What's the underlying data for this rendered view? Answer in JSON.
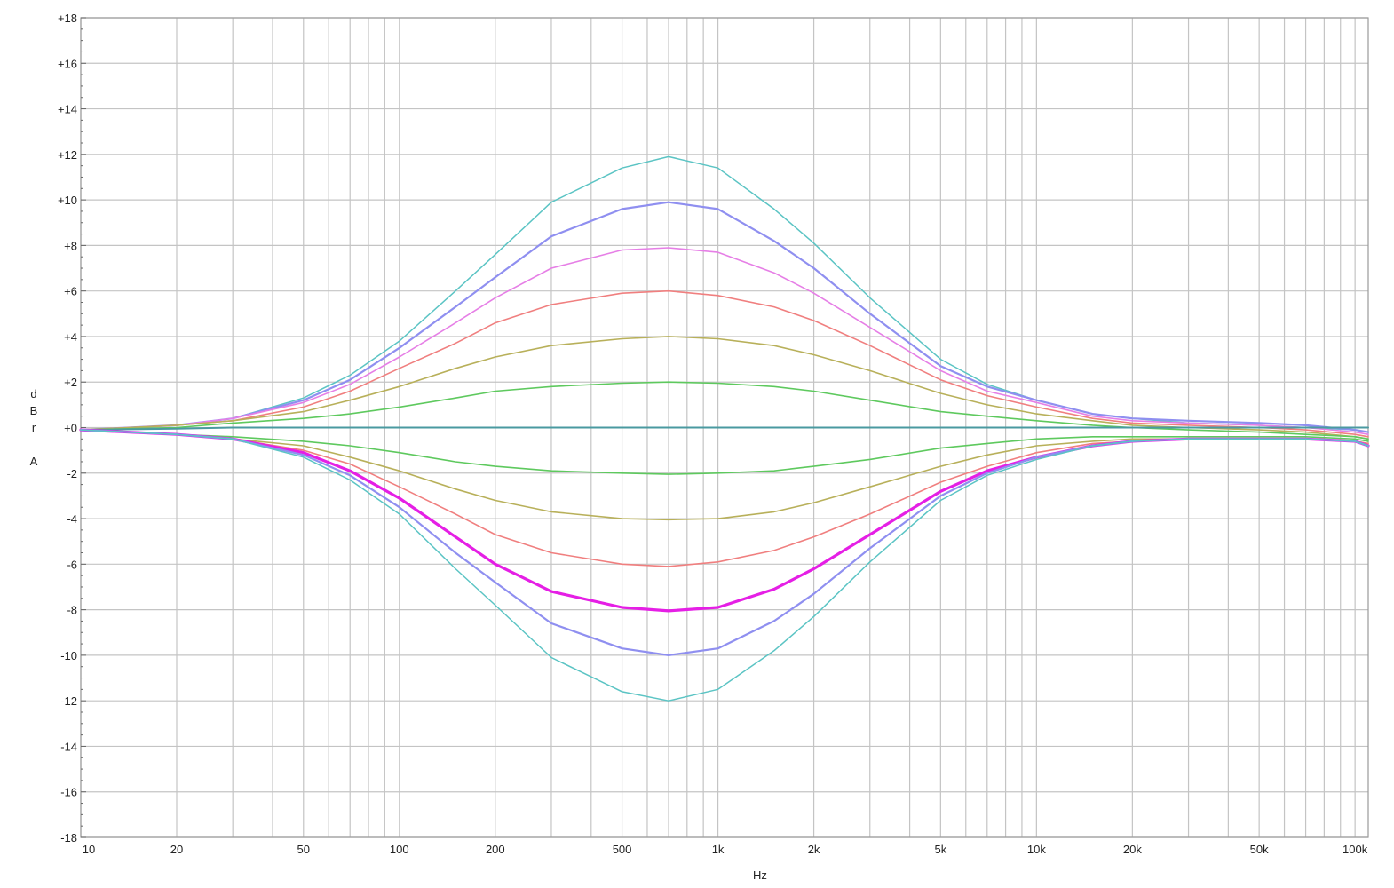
{
  "chart_data": {
    "type": "line",
    "x_scale": "log",
    "xlim": [
      10,
      110000
    ],
    "ylim": [
      -18,
      18
    ],
    "grid": true,
    "xlabel": "Hz",
    "ylabel_lines": [
      "d",
      "B",
      "r",
      "",
      "A"
    ],
    "x_ticks": [
      {
        "value": 10,
        "label": "10"
      },
      {
        "value": 20,
        "label": "20"
      },
      {
        "value": 50,
        "label": "50"
      },
      {
        "value": 100,
        "label": "100"
      },
      {
        "value": 200,
        "label": "200"
      },
      {
        "value": 500,
        "label": "500"
      },
      {
        "value": 1000,
        "label": "1k"
      },
      {
        "value": 2000,
        "label": "2k"
      },
      {
        "value": 5000,
        "label": "5k"
      },
      {
        "value": 10000,
        "label": "10k"
      },
      {
        "value": 20000,
        "label": "20k"
      },
      {
        "value": 50000,
        "label": "50k"
      },
      {
        "value": 100000,
        "label": "100k"
      }
    ],
    "y_ticks": [
      {
        "value": 18,
        "label": "+18"
      },
      {
        "value": 16,
        "label": "+16"
      },
      {
        "value": 14,
        "label": "+14"
      },
      {
        "value": 12,
        "label": "+12"
      },
      {
        "value": 10,
        "label": "+10"
      },
      {
        "value": 8,
        "label": "+8"
      },
      {
        "value": 6,
        "label": "+6"
      },
      {
        "value": 4,
        "label": "+4"
      },
      {
        "value": 2,
        "label": "+2"
      },
      {
        "value": 0,
        "label": "+0"
      },
      {
        "value": -2,
        "label": "-2"
      },
      {
        "value": -4,
        "label": "-4"
      },
      {
        "value": -6,
        "label": "-6"
      },
      {
        "value": -8,
        "label": "-8"
      },
      {
        "value": -10,
        "label": "-10"
      },
      {
        "value": -12,
        "label": "-12"
      },
      {
        "value": -14,
        "label": "-14"
      },
      {
        "value": -16,
        "label": "-16"
      },
      {
        "value": -18,
        "label": "-18"
      }
    ],
    "x": [
      10,
      20,
      30,
      50,
      70,
      100,
      150,
      200,
      300,
      500,
      700,
      1000,
      1500,
      2000,
      3000,
      5000,
      7000,
      10000,
      15000,
      20000,
      30000,
      50000,
      70000,
      100000,
      110000
    ],
    "series": [
      {
        "color": "#5bc4c4",
        "width": 1.5,
        "values": [
          -0.1,
          0.1,
          0.4,
          1.3,
          2.3,
          3.8,
          6.0,
          7.6,
          9.9,
          11.4,
          11.9,
          11.4,
          9.6,
          8.1,
          5.7,
          3.0,
          1.9,
          1.2,
          0.6,
          0.4,
          0.2,
          0.1,
          0.0,
          -0.1,
          -0.2
        ]
      },
      {
        "color": "#8f8ff0",
        "width": 2.2,
        "values": [
          -0.1,
          0.1,
          0.4,
          1.2,
          2.1,
          3.5,
          5.3,
          6.6,
          8.4,
          9.6,
          9.9,
          9.6,
          8.2,
          7.0,
          5.0,
          2.7,
          1.8,
          1.2,
          0.6,
          0.4,
          0.3,
          0.2,
          0.1,
          -0.1,
          -0.2
        ]
      },
      {
        "color": "#e67fe6",
        "width": 1.6,
        "values": [
          -0.1,
          0.1,
          0.4,
          1.1,
          1.9,
          3.1,
          4.6,
          5.7,
          7.0,
          7.8,
          7.9,
          7.7,
          6.8,
          5.9,
          4.4,
          2.5,
          1.6,
          1.1,
          0.5,
          0.3,
          0.2,
          0.1,
          0.0,
          -0.2,
          -0.3
        ]
      },
      {
        "color": "#f07f7f",
        "width": 1.6,
        "values": [
          -0.1,
          0.1,
          0.3,
          0.9,
          1.6,
          2.6,
          3.7,
          4.6,
          5.4,
          5.9,
          6.0,
          5.8,
          5.3,
          4.7,
          3.6,
          2.1,
          1.4,
          0.9,
          0.4,
          0.2,
          0.1,
          0.0,
          -0.1,
          -0.3,
          -0.4
        ]
      },
      {
        "color": "#b8b05a",
        "width": 1.6,
        "values": [
          -0.1,
          0.1,
          0.3,
          0.7,
          1.2,
          1.8,
          2.6,
          3.1,
          3.6,
          3.9,
          4.0,
          3.9,
          3.6,
          3.2,
          2.5,
          1.5,
          1.0,
          0.6,
          0.3,
          0.1,
          0.0,
          -0.1,
          -0.2,
          -0.4,
          -0.5
        ]
      },
      {
        "color": "#5ec95e",
        "width": 1.6,
        "values": [
          -0.1,
          0.0,
          0.2,
          0.4,
          0.6,
          0.9,
          1.3,
          1.6,
          1.8,
          1.95,
          2.0,
          1.95,
          1.8,
          1.6,
          1.2,
          0.7,
          0.5,
          0.3,
          0.1,
          0.0,
          -0.1,
          -0.2,
          -0.3,
          -0.4,
          -0.5
        ]
      },
      {
        "color": "#4a9aa0",
        "width": 2.0,
        "values": [
          -0.1,
          -0.05,
          0.0,
          0.0,
          0.0,
          0.0,
          0.0,
          0.0,
          0.0,
          0.0,
          0.0,
          0.0,
          0.0,
          0.0,
          0.0,
          0.0,
          0.0,
          0.0,
          0.0,
          0.0,
          0.0,
          0.0,
          0.0,
          0.0,
          0.0
        ]
      },
      {
        "color": "#5ec95e",
        "width": 1.6,
        "values": [
          -0.1,
          -0.3,
          -0.4,
          -0.6,
          -0.8,
          -1.1,
          -1.5,
          -1.7,
          -1.9,
          -2.0,
          -2.05,
          -2.0,
          -1.9,
          -1.7,
          -1.4,
          -0.9,
          -0.7,
          -0.5,
          -0.4,
          -0.4,
          -0.4,
          -0.4,
          -0.4,
          -0.5,
          -0.6
        ]
      },
      {
        "color": "#b8b05a",
        "width": 1.6,
        "values": [
          -0.1,
          -0.3,
          -0.5,
          -0.8,
          -1.3,
          -1.9,
          -2.7,
          -3.2,
          -3.7,
          -4.0,
          -4.05,
          -4.0,
          -3.7,
          -3.3,
          -2.6,
          -1.7,
          -1.2,
          -0.8,
          -0.6,
          -0.5,
          -0.5,
          -0.5,
          -0.5,
          -0.6,
          -0.7
        ]
      },
      {
        "color": "#f07f7f",
        "width": 1.6,
        "values": [
          -0.1,
          -0.3,
          -0.5,
          -1.0,
          -1.6,
          -2.6,
          -3.8,
          -4.7,
          -5.5,
          -6.0,
          -6.1,
          -5.9,
          -5.4,
          -4.8,
          -3.8,
          -2.4,
          -1.7,
          -1.1,
          -0.7,
          -0.6,
          -0.5,
          -0.5,
          -0.5,
          -0.6,
          -0.7
        ]
      },
      {
        "color": "#e51fe5",
        "width": 3.2,
        "values": [
          -0.1,
          -0.3,
          -0.5,
          -1.1,
          -1.9,
          -3.1,
          -4.8,
          -6.0,
          -7.2,
          -7.9,
          -8.05,
          -7.9,
          -7.1,
          -6.2,
          -4.7,
          -2.8,
          -1.9,
          -1.3,
          -0.8,
          -0.6,
          -0.5,
          -0.5,
          -0.5,
          -0.6,
          -0.8
        ]
      },
      {
        "color": "#8f8ff0",
        "width": 2.2,
        "values": [
          -0.1,
          -0.3,
          -0.5,
          -1.2,
          -2.1,
          -3.5,
          -5.5,
          -6.8,
          -8.6,
          -9.7,
          -10.0,
          -9.7,
          -8.5,
          -7.3,
          -5.3,
          -3.0,
          -2.0,
          -1.3,
          -0.8,
          -0.6,
          -0.5,
          -0.5,
          -0.5,
          -0.6,
          -0.8
        ]
      },
      {
        "color": "#5bc4c4",
        "width": 1.5,
        "values": [
          -0.1,
          -0.3,
          -0.5,
          -1.3,
          -2.3,
          -3.8,
          -6.2,
          -7.8,
          -10.1,
          -11.6,
          -12.0,
          -11.5,
          -9.8,
          -8.3,
          -5.9,
          -3.2,
          -2.1,
          -1.4,
          -0.8,
          -0.6,
          -0.5,
          -0.5,
          -0.5,
          -0.6,
          -0.8
        ]
      }
    ]
  }
}
